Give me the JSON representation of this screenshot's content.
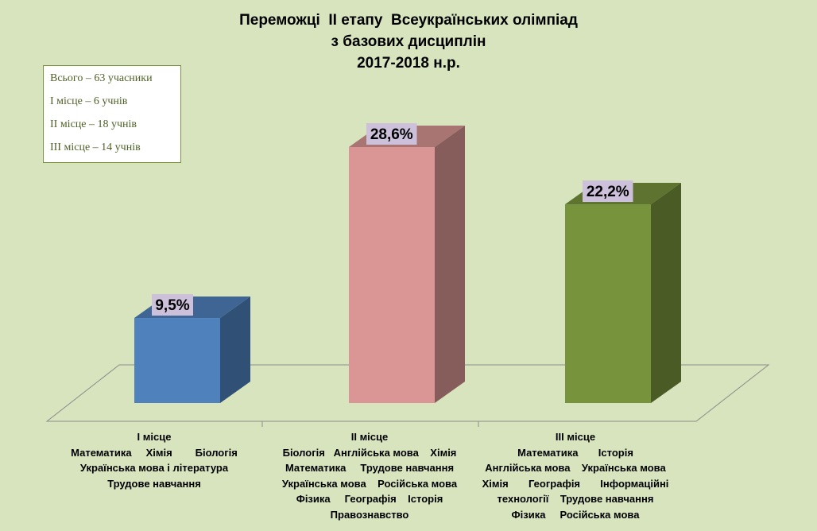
{
  "title_lines": [
    "Переможці  ІІ етапу  Всеукраїнських олімпіад",
    "з базових дисциплін",
    "2017-2018 н.р."
  ],
  "info_box": [
    "Всього – 63 учасники",
    "І місце – 6 учнів",
    "ІІ місце – 18 учнів",
    "ІІІ місце – 14 учнів"
  ],
  "colors": {
    "background": "#d7e4bd",
    "bar1": "#4f81bd",
    "bar2": "#d99694",
    "bar3": "#77933c",
    "data_label_bg": "#ccc0da",
    "info_text": "#4f6228"
  },
  "chart_data": {
    "type": "bar",
    "categories": [
      "І місце",
      "ІІ місце",
      "ІІІ місце"
    ],
    "values": [
      9.5,
      28.6,
      22.2
    ],
    "data_labels": [
      "9,5%",
      "28,6%",
      "22,2%"
    ],
    "ylim": [
      0,
      35
    ],
    "category_details": [
      [
        "Математика     Хімія        Біологія",
        "Українська мова і література",
        "Трудове навчання"
      ],
      [
        "Біологія   Англійська мова    Хімія",
        "Математика     Трудове навчання",
        "Українська мова    Російська мова",
        "Фізика     Географія    Історія",
        "Правознавство"
      ],
      [
        "Математика       Історія",
        "Англійська мова    Українська мова",
        "Хімія       Географія       Інформаційні",
        "технології    Трудове навчання",
        "Фізика     Російська мова"
      ]
    ]
  }
}
